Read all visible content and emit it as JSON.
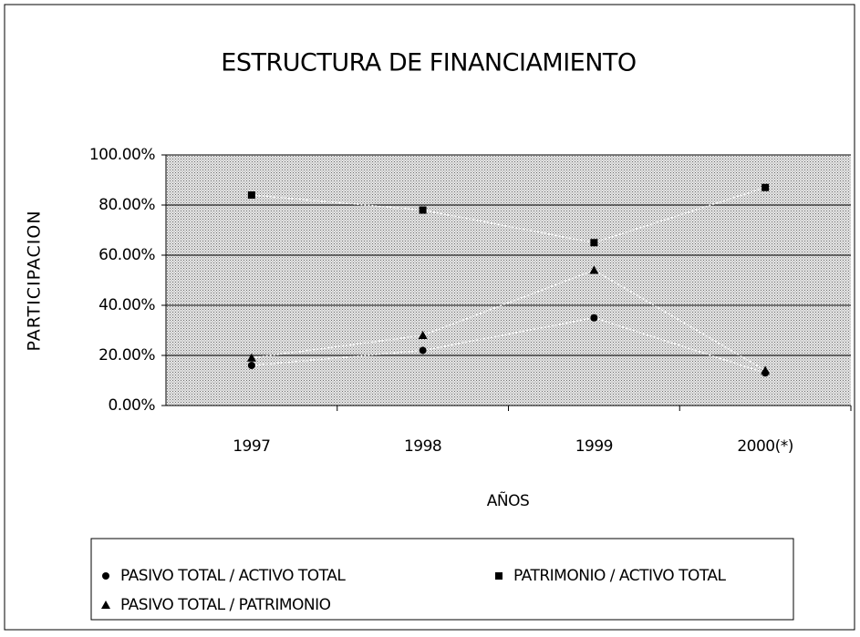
{
  "chart_data": {
    "type": "line",
    "title": "ESTRUCTURA DE FINANCIAMIENTO",
    "y_label": "PARTICIPACION",
    "x_label": "AÑOS",
    "categories": [
      "1997",
      "1998",
      "1999",
      "2000(*)"
    ],
    "series": [
      {
        "name": "PASIVO TOTAL / ACTIVO TOTAL",
        "marker": "circle",
        "color": "#000000",
        "values": [
          16,
          22,
          35,
          13
        ]
      },
      {
        "name": "PATRIMONIO / ACTIVO TOTAL",
        "marker": "square",
        "color": "#000000",
        "values": [
          84,
          78,
          65,
          87
        ]
      },
      {
        "name": "PASIVO TOTAL / PATRIMONIO",
        "marker": "triangle",
        "color": "#000000",
        "values": [
          19,
          28,
          54,
          14
        ]
      }
    ],
    "ylim": [
      0,
      100
    ],
    "yticks": [
      {
        "value": 0,
        "label": "0.00%"
      },
      {
        "value": 20,
        "label": "20.00%"
      },
      {
        "value": 40,
        "label": "40.00%"
      },
      {
        "value": 60,
        "label": "60.00%"
      },
      {
        "value": 80,
        "label": "80.00%"
      },
      {
        "value": 100,
        "label": "100.00%"
      }
    ],
    "grid": true
  }
}
